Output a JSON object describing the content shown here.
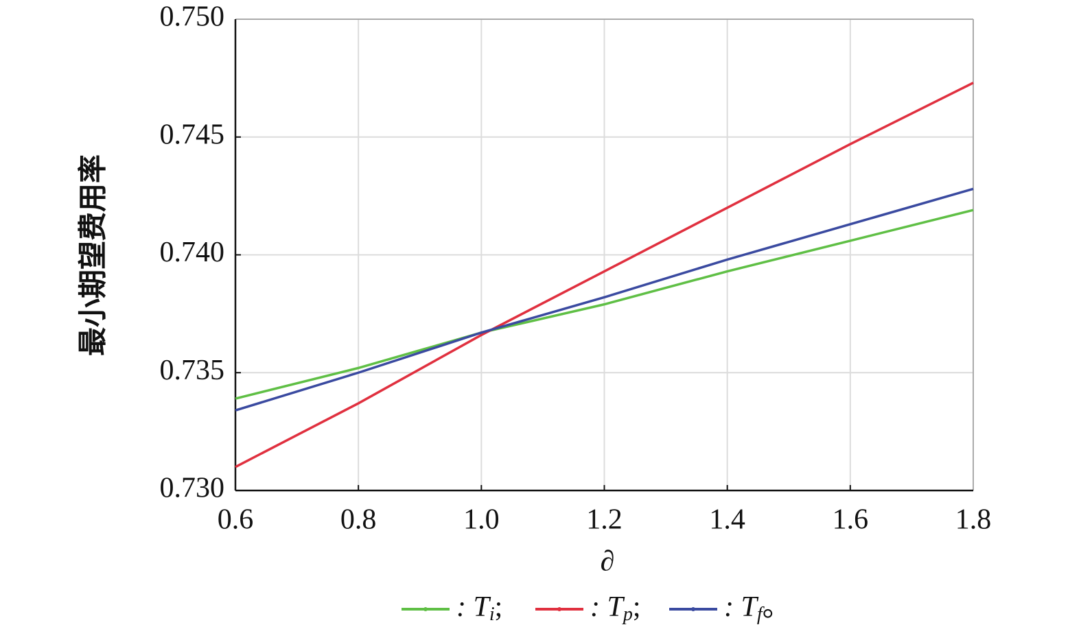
{
  "chart_data": {
    "type": "line",
    "x_label": "∂",
    "y_label": "最小期望费用率",
    "x": [
      0.6,
      0.8,
      1.0,
      1.2,
      1.4,
      1.6,
      1.8
    ],
    "series": [
      {
        "name": ": Ti;",
        "color": "#5fbf45",
        "values": [
          0.7339,
          0.7352,
          0.7367,
          0.7379,
          0.7393,
          0.7406,
          0.7419
        ]
      },
      {
        "name": ": Tp;",
        "color": "#e0303f",
        "values": [
          0.731,
          0.7337,
          0.7366,
          0.7393,
          0.742,
          0.7447,
          0.7473
        ]
      },
      {
        "name": ": Tf。",
        "color": "#3a4aa0",
        "values": [
          0.7334,
          0.735,
          0.7367,
          0.7382,
          0.7398,
          0.7413,
          0.7428
        ]
      }
    ],
    "xlim": [
      0.6,
      1.8
    ],
    "ylim": [
      0.73,
      0.75
    ],
    "xticks": [
      0.6,
      0.8,
      {
        "value": 1.0,
        "label": "1.0"
      },
      1.2,
      1.4,
      1.6,
      1.8
    ],
    "yticks": [
      {
        "value": 0.73,
        "label": "0.730"
      },
      {
        "value": 0.735,
        "label": "0.735"
      },
      {
        "value": 0.74,
        "label": "0.740"
      },
      {
        "value": 0.745,
        "label": "0.745"
      },
      {
        "value": 0.75,
        "label": "0.750"
      }
    ],
    "grid": true
  }
}
